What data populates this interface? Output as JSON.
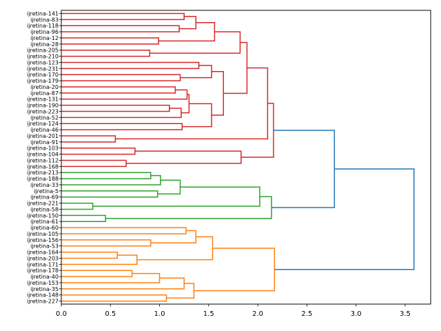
{
  "chart_data": {
    "type": "dendrogram",
    "orientation": "right",
    "title": "",
    "xlabel": "",
    "ylabel": "",
    "xlim": [
      0.0,
      3.76
    ],
    "xticks": [
      "0.0",
      "0.5",
      "1.0",
      "1.5",
      "2.0",
      "2.5",
      "3.0",
      "3.5"
    ],
    "xtick_values": [
      0.0,
      0.5,
      1.0,
      1.5,
      2.0,
      2.5,
      3.0,
      3.5
    ],
    "colors": {
      "red": "#d62728",
      "green": "#2ca02c",
      "orange": "#ff7f0e",
      "blue": "#1f77b4"
    },
    "leaves": [
      "ijretina-141",
      "ijretina-83",
      "ijretina-118",
      "ijretina-96",
      "ijretina-12",
      "ijretina-28",
      "ijretina-205",
      "ijretina-210",
      "ijretina-123",
      "ijretina-231",
      "ijretina-170",
      "ijretina-179",
      "ijretina-20",
      "ijretina-87",
      "ijretina-131",
      "ijretina-190",
      "ijretina-223",
      "ijretina-52",
      "ijretina-124",
      "ijretina-46",
      "ijretina-201",
      "ijretina-91",
      "ijretina-103",
      "ijretina-104",
      "ijretina-112",
      "ijretina-168",
      "ijretina-213",
      "ijretina-188",
      "ijretina-33",
      "ijretina-5",
      "ijretina-69",
      "ijretina-221",
      "ijretina-58",
      "ijretina-150",
      "ijretina-61",
      "ijretina-60",
      "ijretina-105",
      "ijretina-156",
      "ijretina-53",
      "ijretina-164",
      "ijretina-203",
      "ijretina-171",
      "ijretina-178",
      "ijretina-40",
      "ijretina-153",
      "ijretina-35",
      "ijretina-148",
      "ijretina-227"
    ],
    "merges": [
      {
        "id": "a1",
        "left": "L0",
        "right": "L1",
        "height": 1.25,
        "color": "red"
      },
      {
        "id": "a2",
        "left": "L2",
        "right": "L3",
        "height": 1.2,
        "color": "red"
      },
      {
        "id": "a3",
        "left": "a1",
        "right": "a2",
        "height": 1.37,
        "color": "red"
      },
      {
        "id": "a4",
        "left": "L4",
        "right": "L5",
        "height": 0.99,
        "color": "red"
      },
      {
        "id": "a5",
        "left": "a3",
        "right": "a4",
        "height": 1.56,
        "color": "red"
      },
      {
        "id": "a6",
        "left": "L6",
        "right": "L7",
        "height": 0.9,
        "color": "red"
      },
      {
        "id": "a7",
        "left": "a5",
        "right": "a6",
        "height": 1.82,
        "color": "red"
      },
      {
        "id": "b1",
        "left": "L8",
        "right": "L9",
        "height": 1.4,
        "color": "red"
      },
      {
        "id": "b2",
        "left": "L10",
        "right": "L11",
        "height": 1.21,
        "color": "red"
      },
      {
        "id": "b3",
        "left": "b1",
        "right": "b2",
        "height": 1.53,
        "color": "red"
      },
      {
        "id": "b4",
        "left": "L12",
        "right": "L13",
        "height": 1.16,
        "color": "red"
      },
      {
        "id": "b5",
        "left": "b4",
        "right": "L14",
        "height": 1.28,
        "color": "red"
      },
      {
        "id": "b6",
        "left": "L15",
        "right": "L16",
        "height": 1.1,
        "color": "red"
      },
      {
        "id": "b7",
        "left": "b6",
        "right": "L17",
        "height": 1.22,
        "color": "red"
      },
      {
        "id": "b8",
        "left": "b5",
        "right": "b7",
        "height": 1.3,
        "color": "red"
      },
      {
        "id": "b9",
        "left": "L18",
        "right": "L19",
        "height": 1.23,
        "color": "red"
      },
      {
        "id": "b10",
        "left": "b8",
        "right": "b9",
        "height": 1.53,
        "color": "red"
      },
      {
        "id": "b11",
        "left": "b3",
        "right": "b10",
        "height": 1.65,
        "color": "red"
      },
      {
        "id": "c1",
        "left": "a7",
        "right": "b11",
        "height": 1.89,
        "color": "red"
      },
      {
        "id": "c2",
        "left": "L20",
        "right": "L21",
        "height": 0.55,
        "color": "red"
      },
      {
        "id": "c3",
        "left": "c1",
        "right": "c2",
        "height": 2.1,
        "color": "red"
      },
      {
        "id": "d1",
        "left": "L22",
        "right": "L23",
        "height": 0.75,
        "color": "red"
      },
      {
        "id": "d2",
        "left": "L24",
        "right": "L25",
        "height": 0.66,
        "color": "red"
      },
      {
        "id": "d3",
        "left": "d1",
        "right": "d2",
        "height": 1.83,
        "color": "red"
      },
      {
        "id": "r",
        "left": "c3",
        "right": "d3",
        "height": 2.16,
        "color": "red"
      },
      {
        "id": "g1",
        "left": "L26",
        "right": "L27",
        "height": 0.91,
        "color": "green"
      },
      {
        "id": "g2",
        "left": "g1",
        "right": "L28",
        "height": 1.01,
        "color": "green"
      },
      {
        "id": "g3",
        "left": "L29",
        "right": "L30",
        "height": 0.98,
        "color": "green"
      },
      {
        "id": "g4",
        "left": "g2",
        "right": "g3",
        "height": 1.21,
        "color": "green"
      },
      {
        "id": "g5",
        "left": "L31",
        "right": "L32",
        "height": 0.32,
        "color": "green"
      },
      {
        "id": "g6",
        "left": "g4",
        "right": "g5",
        "height": 2.02,
        "color": "green"
      },
      {
        "id": "g7",
        "left": "L33",
        "right": "L34",
        "height": 0.45,
        "color": "green"
      },
      {
        "id": "g",
        "left": "g6",
        "right": "g7",
        "height": 2.14,
        "color": "green"
      },
      {
        "id": "o1",
        "left": "L35",
        "right": "L36",
        "height": 1.27,
        "color": "orange"
      },
      {
        "id": "o2",
        "left": "L37",
        "right": "L38",
        "height": 0.91,
        "color": "orange"
      },
      {
        "id": "o3",
        "left": "o1",
        "right": "o2",
        "height": 1.37,
        "color": "orange"
      },
      {
        "id": "o4",
        "left": "L39",
        "right": "L40",
        "height": 0.57,
        "color": "orange"
      },
      {
        "id": "o5",
        "left": "o4",
        "right": "L41",
        "height": 0.77,
        "color": "orange"
      },
      {
        "id": "o6",
        "left": "o3",
        "right": "o5",
        "height": 1.54,
        "color": "orange"
      },
      {
        "id": "o7",
        "left": "L42",
        "right": "L43",
        "height": 0.72,
        "color": "orange"
      },
      {
        "id": "o8",
        "left": "o7",
        "right": "L44",
        "height": 1.0,
        "color": "orange"
      },
      {
        "id": "o9",
        "left": "o8",
        "right": "L45",
        "height": 1.25,
        "color": "orange"
      },
      {
        "id": "o10",
        "left": "L46",
        "right": "L47",
        "height": 1.07,
        "color": "orange"
      },
      {
        "id": "o11",
        "left": "o9",
        "right": "o10",
        "height": 1.35,
        "color": "orange"
      },
      {
        "id": "o",
        "left": "o6",
        "right": "o11",
        "height": 2.17,
        "color": "orange"
      },
      {
        "id": "rg",
        "left": "r",
        "right": "g",
        "height": 2.78,
        "color": "blue"
      },
      {
        "id": "root",
        "left": "rg",
        "right": "o",
        "height": 3.59,
        "color": "blue"
      }
    ]
  }
}
